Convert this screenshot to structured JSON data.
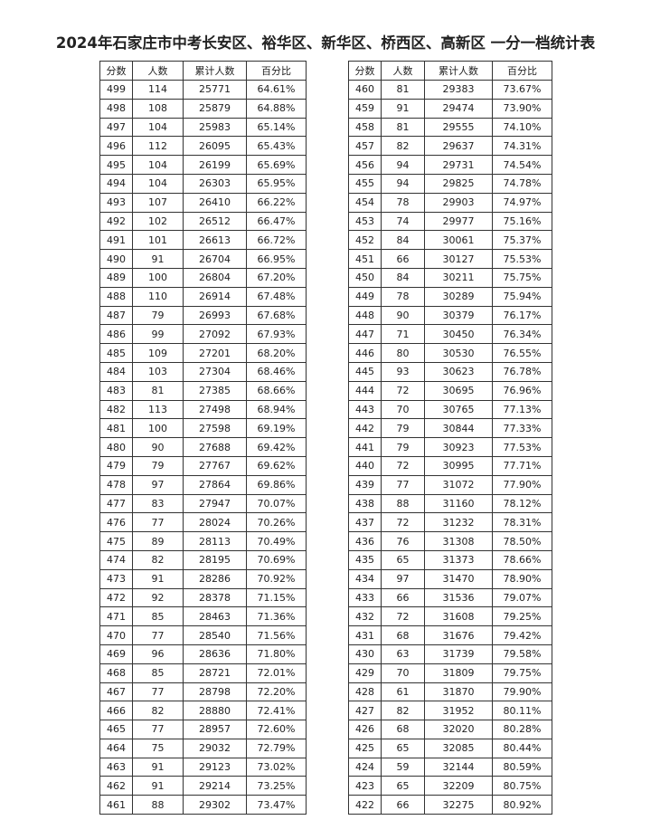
{
  "title": "2024年石家庄市中考长安区、裕华区、新华区、桥西区、高新区 一分一档统计表",
  "tables": [
    {
      "header": [
        "分数",
        "人数",
        "累计人数",
        "百分比"
      ],
      "rows": [
        [
          "499",
          "114",
          "25771",
          "64.61%"
        ],
        [
          "498",
          "108",
          "25879",
          "64.88%"
        ],
        [
          "497",
          "104",
          "25983",
          "65.14%"
        ],
        [
          "496",
          "112",
          "26095",
          "65.43%"
        ],
        [
          "495",
          "104",
          "26199",
          "65.69%"
        ],
        [
          "494",
          "104",
          "26303",
          "65.95%"
        ],
        [
          "493",
          "107",
          "26410",
          "66.22%"
        ],
        [
          "492",
          "102",
          "26512",
          "66.47%"
        ],
        [
          "491",
          "101",
          "26613",
          "66.72%"
        ],
        [
          "490",
          "91",
          "26704",
          "66.95%"
        ],
        [
          "489",
          "100",
          "26804",
          "67.20%"
        ],
        [
          "488",
          "110",
          "26914",
          "67.48%"
        ],
        [
          "487",
          "79",
          "26993",
          "67.68%"
        ],
        [
          "486",
          "99",
          "27092",
          "67.93%"
        ],
        [
          "485",
          "109",
          "27201",
          "68.20%"
        ],
        [
          "484",
          "103",
          "27304",
          "68.46%"
        ],
        [
          "483",
          "81",
          "27385",
          "68.66%"
        ],
        [
          "482",
          "113",
          "27498",
          "68.94%"
        ],
        [
          "481",
          "100",
          "27598",
          "69.19%"
        ],
        [
          "480",
          "90",
          "27688",
          "69.42%"
        ],
        [
          "479",
          "79",
          "27767",
          "69.62%"
        ],
        [
          "478",
          "97",
          "27864",
          "69.86%"
        ],
        [
          "477",
          "83",
          "27947",
          "70.07%"
        ],
        [
          "476",
          "77",
          "28024",
          "70.26%"
        ],
        [
          "475",
          "89",
          "28113",
          "70.49%"
        ],
        [
          "474",
          "82",
          "28195",
          "70.69%"
        ],
        [
          "473",
          "91",
          "28286",
          "70.92%"
        ],
        [
          "472",
          "92",
          "28378",
          "71.15%"
        ],
        [
          "471",
          "85",
          "28463",
          "71.36%"
        ],
        [
          "470",
          "77",
          "28540",
          "71.56%"
        ],
        [
          "469",
          "96",
          "28636",
          "71.80%"
        ],
        [
          "468",
          "85",
          "28721",
          "72.01%"
        ],
        [
          "467",
          "77",
          "28798",
          "72.20%"
        ],
        [
          "466",
          "82",
          "28880",
          "72.41%"
        ],
        [
          "465",
          "77",
          "28957",
          "72.60%"
        ],
        [
          "464",
          "75",
          "29032",
          "72.79%"
        ],
        [
          "463",
          "91",
          "29123",
          "73.02%"
        ],
        [
          "462",
          "91",
          "29214",
          "73.25%"
        ],
        [
          "461",
          "88",
          "29302",
          "73.47%"
        ]
      ]
    },
    {
      "header": [
        "分数",
        "人数",
        "累计人数",
        "百分比"
      ],
      "rows": [
        [
          "460",
          "81",
          "29383",
          "73.67%"
        ],
        [
          "459",
          "91",
          "29474",
          "73.90%"
        ],
        [
          "458",
          "81",
          "29555",
          "74.10%"
        ],
        [
          "457",
          "82",
          "29637",
          "74.31%"
        ],
        [
          "456",
          "94",
          "29731",
          "74.54%"
        ],
        [
          "455",
          "94",
          "29825",
          "74.78%"
        ],
        [
          "454",
          "78",
          "29903",
          "74.97%"
        ],
        [
          "453",
          "74",
          "29977",
          "75.16%"
        ],
        [
          "452",
          "84",
          "30061",
          "75.37%"
        ],
        [
          "451",
          "66",
          "30127",
          "75.53%"
        ],
        [
          "450",
          "84",
          "30211",
          "75.75%"
        ],
        [
          "449",
          "78",
          "30289",
          "75.94%"
        ],
        [
          "448",
          "90",
          "30379",
          "76.17%"
        ],
        [
          "447",
          "71",
          "30450",
          "76.34%"
        ],
        [
          "446",
          "80",
          "30530",
          "76.55%"
        ],
        [
          "445",
          "93",
          "30623",
          "76.78%"
        ],
        [
          "444",
          "72",
          "30695",
          "76.96%"
        ],
        [
          "443",
          "70",
          "30765",
          "77.13%"
        ],
        [
          "442",
          "79",
          "30844",
          "77.33%"
        ],
        [
          "441",
          "79",
          "30923",
          "77.53%"
        ],
        [
          "440",
          "72",
          "30995",
          "77.71%"
        ],
        [
          "439",
          "77",
          "31072",
          "77.90%"
        ],
        [
          "438",
          "88",
          "31160",
          "78.12%"
        ],
        [
          "437",
          "72",
          "31232",
          "78.31%"
        ],
        [
          "436",
          "76",
          "31308",
          "78.50%"
        ],
        [
          "435",
          "65",
          "31373",
          "78.66%"
        ],
        [
          "434",
          "97",
          "31470",
          "78.90%"
        ],
        [
          "433",
          "66",
          "31536",
          "79.07%"
        ],
        [
          "432",
          "72",
          "31608",
          "79.25%"
        ],
        [
          "431",
          "68",
          "31676",
          "79.42%"
        ],
        [
          "430",
          "63",
          "31739",
          "79.58%"
        ],
        [
          "429",
          "70",
          "31809",
          "79.75%"
        ],
        [
          "428",
          "61",
          "31870",
          "79.90%"
        ],
        [
          "427",
          "82",
          "31952",
          "80.11%"
        ],
        [
          "426",
          "68",
          "32020",
          "80.28%"
        ],
        [
          "425",
          "65",
          "32085",
          "80.44%"
        ],
        [
          "424",
          "59",
          "32144",
          "80.59%"
        ],
        [
          "423",
          "65",
          "32209",
          "80.75%"
        ],
        [
          "422",
          "66",
          "32275",
          "80.92%"
        ]
      ]
    }
  ]
}
